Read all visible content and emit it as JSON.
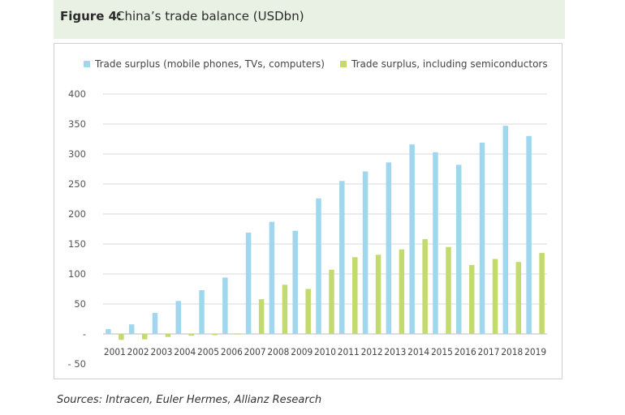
{
  "figure": {
    "label": "Figure 4:",
    "title": "China’s trade balance (USDbn)"
  },
  "source": "Sources: Intracen, Euler Hermes, Allianz Research",
  "colors": {
    "series1": "#9fd8ee",
    "series2": "#c3db6d",
    "header_bg": "#e8f1e4",
    "grid": "#d9d9d9"
  },
  "chart_data": {
    "type": "bar",
    "title": "China’s trade balance (USDbn)",
    "xlabel": "",
    "ylabel": "",
    "categories": [
      "2001",
      "2002",
      "2003",
      "2004",
      "2005",
      "2006",
      "2007",
      "2008",
      "2009",
      "2010",
      "2011",
      "2012",
      "2013",
      "2014",
      "2015",
      "2016",
      "2017",
      "2018",
      "2019"
    ],
    "series": [
      {
        "name": "Trade surplus (mobile phones, TVs, computers)",
        "values": [
          8,
          16,
          35,
          55,
          73,
          94,
          169,
          187,
          172,
          226,
          255,
          271,
          286,
          316,
          303,
          282,
          319,
          347,
          330
        ]
      },
      {
        "name": "Trade surplus, including semiconductors",
        "values": [
          -10,
          -9,
          -5,
          -3,
          -2,
          -1,
          58,
          82,
          75,
          107,
          128,
          132,
          141,
          158,
          145,
          115,
          125,
          120,
          135
        ]
      }
    ],
    "ylim": [
      -50,
      400
    ],
    "yticks": [
      400,
      350,
      300,
      250,
      200,
      150,
      100,
      50,
      0,
      -50
    ],
    "ytick_labels": [
      "400",
      "350",
      "300",
      "250",
      "200",
      "150",
      "100",
      "50",
      "-",
      "- 50"
    ],
    "grid": true,
    "legend_position": "top"
  }
}
